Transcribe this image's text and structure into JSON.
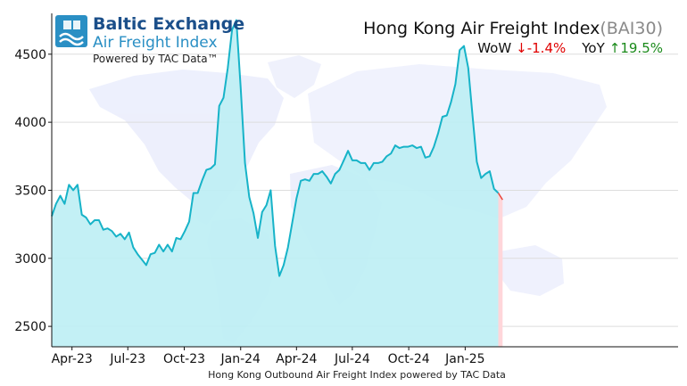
{
  "brand": {
    "line1": "Baltic Exchange",
    "line2": "Air Freight Index",
    "line3": "Powered by TAC Data™"
  },
  "header": {
    "title": "Hong Kong Air Freight Index",
    "code": "(BAI30)",
    "wow_label": "WoW",
    "wow_value": "↓-1.4%",
    "yoy_label": "YoY",
    "yoy_value": "↑19.5%"
  },
  "colors": {
    "line": "#17b3c8",
    "area": "#bdeef4",
    "latest_area": "#ffd6da",
    "latest_line": "#e8443a",
    "wow": "#e00000",
    "yoy": "#1a8a1a",
    "brand": "#1b4f8a",
    "grid": "#dddddd"
  },
  "chart_data": {
    "type": "area",
    "xlabel": "Hong Kong Outbound Air Freight Index powered by TAC Data",
    "ylabel": "",
    "ylim": [
      2350,
      4800
    ],
    "yticks": [
      2500,
      3000,
      3500,
      4000,
      4500
    ],
    "xticks": [
      {
        "label": "Apr-23",
        "date": "2023-04-01"
      },
      {
        "label": "Jul-23",
        "date": "2023-07-01"
      },
      {
        "label": "Oct-23",
        "date": "2023-10-01"
      },
      {
        "label": "Jan-24",
        "date": "2024-01-01"
      },
      {
        "label": "Apr-24",
        "date": "2024-04-01"
      },
      {
        "label": "Jul-24",
        "date": "2024-07-01"
      },
      {
        "label": "Oct-24",
        "date": "2024-10-01"
      },
      {
        "label": "Jan-25",
        "date": "2025-01-01"
      }
    ],
    "grid": true,
    "series": [
      {
        "values": [
          [
            "2023-02-27",
            3310
          ],
          [
            "2023-03-06",
            3400
          ],
          [
            "2023-03-13",
            3460
          ],
          [
            "2023-03-20",
            3400
          ],
          [
            "2023-03-27",
            3540
          ],
          [
            "2023-04-03",
            3500
          ],
          [
            "2023-04-10",
            3540
          ],
          [
            "2023-04-17",
            3320
          ],
          [
            "2023-04-24",
            3300
          ],
          [
            "2023-05-01",
            3250
          ],
          [
            "2023-05-08",
            3280
          ],
          [
            "2023-05-15",
            3280
          ],
          [
            "2023-05-22",
            3210
          ],
          [
            "2023-05-29",
            3220
          ],
          [
            "2023-06-05",
            3200
          ],
          [
            "2023-06-12",
            3160
          ],
          [
            "2023-06-19",
            3180
          ],
          [
            "2023-06-26",
            3140
          ],
          [
            "2023-07-03",
            3190
          ],
          [
            "2023-07-10",
            3080
          ],
          [
            "2023-07-17",
            3030
          ],
          [
            "2023-07-24",
            2990
          ],
          [
            "2023-07-31",
            2950
          ],
          [
            "2023-08-07",
            3030
          ],
          [
            "2023-08-14",
            3040
          ],
          [
            "2023-08-21",
            3100
          ],
          [
            "2023-08-28",
            3050
          ],
          [
            "2023-09-04",
            3100
          ],
          [
            "2023-09-11",
            3050
          ],
          [
            "2023-09-18",
            3150
          ],
          [
            "2023-09-25",
            3140
          ],
          [
            "2023-10-02",
            3200
          ],
          [
            "2023-10-09",
            3270
          ],
          [
            "2023-10-16",
            3480
          ],
          [
            "2023-10-23",
            3480
          ],
          [
            "2023-10-30",
            3570
          ],
          [
            "2023-11-06",
            3650
          ],
          [
            "2023-11-13",
            3660
          ],
          [
            "2023-11-20",
            3690
          ],
          [
            "2023-11-27",
            4120
          ],
          [
            "2023-12-04",
            4180
          ],
          [
            "2023-12-11",
            4400
          ],
          [
            "2023-12-18",
            4680
          ],
          [
            "2023-12-25",
            4750
          ],
          [
            "2024-01-01",
            4250
          ],
          [
            "2024-01-08",
            3700
          ],
          [
            "2024-01-15",
            3450
          ],
          [
            "2024-01-22",
            3330
          ],
          [
            "2024-01-29",
            3150
          ],
          [
            "2024-02-05",
            3340
          ],
          [
            "2024-02-12",
            3390
          ],
          [
            "2024-02-19",
            3500
          ],
          [
            "2024-02-26",
            3090
          ],
          [
            "2024-03-04",
            2870
          ],
          [
            "2024-03-11",
            2950
          ],
          [
            "2024-03-18",
            3080
          ],
          [
            "2024-03-25",
            3260
          ],
          [
            "2024-04-01",
            3440
          ],
          [
            "2024-04-08",
            3570
          ],
          [
            "2024-04-15",
            3580
          ],
          [
            "2024-04-22",
            3570
          ],
          [
            "2024-04-29",
            3620
          ],
          [
            "2024-05-06",
            3620
          ],
          [
            "2024-05-13",
            3640
          ],
          [
            "2024-05-20",
            3600
          ],
          [
            "2024-05-27",
            3550
          ],
          [
            "2024-06-03",
            3620
          ],
          [
            "2024-06-10",
            3650
          ],
          [
            "2024-06-17",
            3720
          ],
          [
            "2024-06-24",
            3790
          ],
          [
            "2024-07-01",
            3720
          ],
          [
            "2024-07-08",
            3720
          ],
          [
            "2024-07-15",
            3700
          ],
          [
            "2024-07-22",
            3700
          ],
          [
            "2024-07-29",
            3650
          ],
          [
            "2024-08-05",
            3700
          ],
          [
            "2024-08-12",
            3700
          ],
          [
            "2024-08-19",
            3710
          ],
          [
            "2024-08-26",
            3750
          ],
          [
            "2024-09-02",
            3770
          ],
          [
            "2024-09-09",
            3830
          ],
          [
            "2024-09-16",
            3810
          ],
          [
            "2024-09-23",
            3820
          ],
          [
            "2024-09-30",
            3820
          ],
          [
            "2024-10-07",
            3830
          ],
          [
            "2024-10-14",
            3810
          ],
          [
            "2024-10-21",
            3820
          ],
          [
            "2024-10-28",
            3740
          ],
          [
            "2024-11-04",
            3750
          ],
          [
            "2024-11-11",
            3820
          ],
          [
            "2024-11-18",
            3920
          ],
          [
            "2024-11-25",
            4040
          ],
          [
            "2024-12-02",
            4050
          ],
          [
            "2024-12-09",
            4150
          ],
          [
            "2024-12-16",
            4280
          ],
          [
            "2024-12-23",
            4530
          ],
          [
            "2024-12-30",
            4560
          ],
          [
            "2025-01-06",
            4400
          ],
          [
            "2025-01-13",
            4050
          ],
          [
            "2025-01-20",
            3710
          ],
          [
            "2025-01-27",
            3590
          ],
          [
            "2025-02-03",
            3620
          ],
          [
            "2025-02-10",
            3640
          ],
          [
            "2025-02-17",
            3510
          ],
          [
            "2025-02-24",
            3480
          ],
          [
            "2025-03-03",
            3430
          ]
        ]
      }
    ]
  }
}
